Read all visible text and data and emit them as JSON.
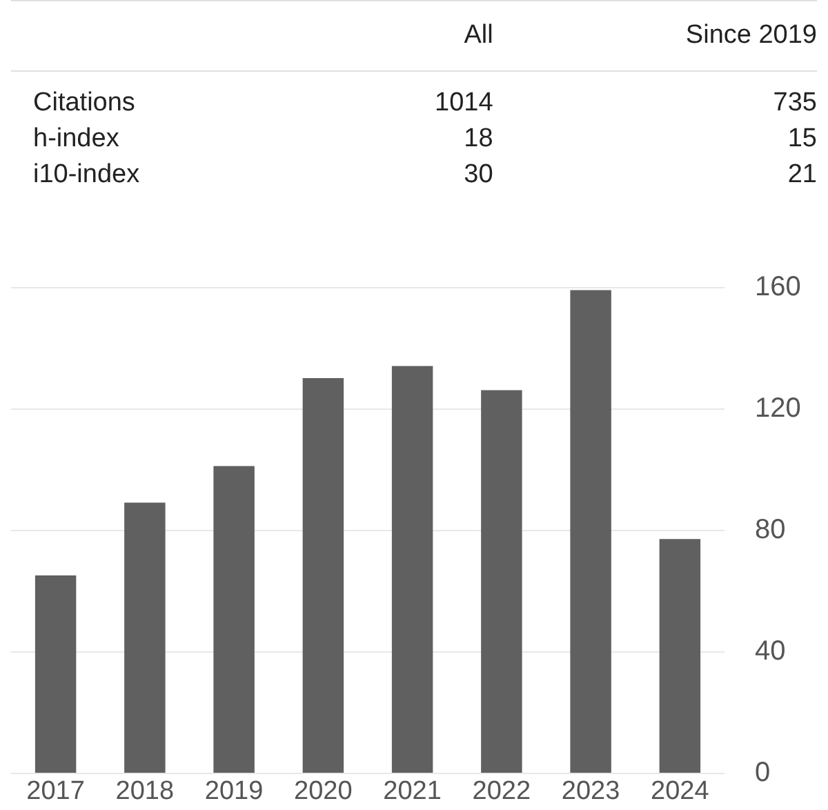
{
  "chart_data": [
    {
      "type": "other",
      "categories": [
        "Citations",
        "h-index",
        "i10-index"
      ],
      "series": [
        {
          "name": "All",
          "values": [
            1014,
            18,
            30
          ]
        },
        {
          "name": "Since 2019",
          "values": [
            735,
            15,
            21
          ]
        }
      ],
      "data_labels": true
    },
    {
      "type": "bar",
      "categories": [
        "2017",
        "2018",
        "2019",
        "2020",
        "2021",
        "2022",
        "2023",
        "2024"
      ],
      "values": [
        65,
        89,
        101,
        130,
        134,
        126,
        159,
        77
      ],
      "color": "#606060",
      "ylim": [
        0,
        160
      ],
      "yticks": [
        0,
        40,
        80,
        120,
        160
      ],
      "grid": "y"
    }
  ]
}
